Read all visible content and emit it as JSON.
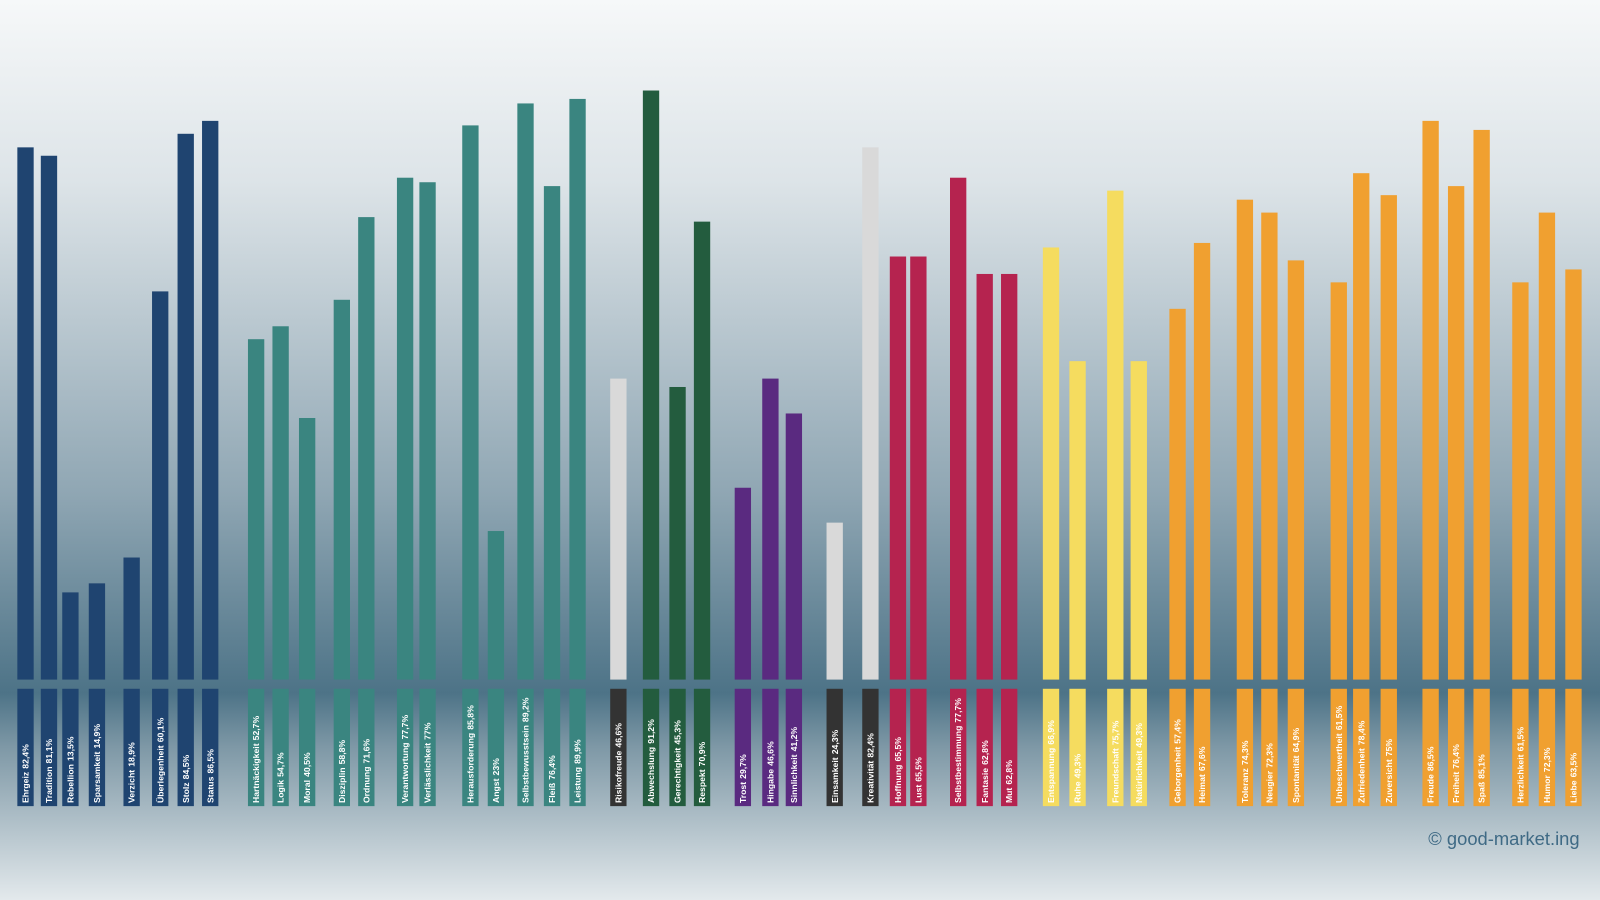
{
  "chart_data": {
    "type": "bar",
    "ylim": [
      0,
      100
    ],
    "footer": "© good-market.ing",
    "categories": [
      "Ehrgeiz",
      "Tradition",
      "Rebellion",
      "Sparsamkeit",
      "Verzicht",
      "Überlegenheit",
      "Stolz",
      "Status",
      "Hartnäckigkeit",
      "Logik",
      "Moral",
      "Disziplin",
      "Ordnung",
      "Verantwortung",
      "Verlässlichkeit",
      "Herausforderung",
      "Angst",
      "Selbstbewusstsein",
      "Fleiß",
      "Leistung",
      "Risikofreude",
      "Abwechslung",
      "Gerechtigkeit",
      "Respekt",
      "Trost",
      "Hingabe",
      "Sinnlichkeit",
      "Einsamkeit",
      "Kreativität",
      "Hoffnung",
      "Lust",
      "Selbstbestimmung",
      "Fantasie",
      "Mut",
      "Entspannung",
      "Ruhe",
      "Freundschaft",
      "Natürlichkeit",
      "Geborgenheit",
      "Heimat",
      "Toleranz",
      "Neugier",
      "Spontanität",
      "Unbeschwertheit",
      "Zufriedenheit",
      "Zuversicht",
      "Freude",
      "Freiheit",
      "Spaß",
      "Herzlichkeit",
      "Humor",
      "Liebe"
    ],
    "values": [
      82.4,
      81.1,
      13.5,
      14.9,
      18.9,
      60.1,
      84.5,
      86.5,
      52.7,
      54.7,
      40.5,
      58.8,
      71.6,
      77.7,
      77,
      85.8,
      23,
      89.2,
      76.4,
      89.9,
      46.6,
      91.2,
      45.3,
      70.9,
      29.7,
      46.6,
      41.2,
      24.3,
      82.4,
      65.5,
      65.5,
      77.7,
      62.8,
      62.8,
      66.9,
      49.3,
      75.7,
      49.3,
      57.4,
      67.6,
      74.3,
      72.3,
      64.9,
      61.5,
      78.4,
      75,
      86.5,
      76.4,
      85.1,
      61.5,
      72.3,
      63.5
    ],
    "value_labels": [
      "82,4%",
      "81,1%",
      "13,5%",
      "14,9%",
      "18,9%",
      "60,1%",
      "84,5%",
      "86,5%",
      "52,7%",
      "54,7%",
      "40,5%",
      "58,8%",
      "71,6%",
      "77,7%",
      "77%",
      "85,8%",
      "23%",
      "89,2%",
      "76,4%",
      "89,9%",
      "46,6%",
      "91,2%",
      "45,3%",
      "70,9%",
      "29,7%",
      "46,6%",
      "41,2%",
      "24,3%",
      "82,4%",
      "65,5%",
      "65,5%",
      "77,7%",
      "62,8%",
      "62,8%",
      "66,9%",
      "49,3%",
      "75,7%",
      "49,3%",
      "57,4%",
      "67,6%",
      "74,3%",
      "72,3%",
      "64,9%",
      "61,5%",
      "78,4%",
      "75%",
      "86,5%",
      "76,4%",
      "85,1%",
      "61,5%",
      "72,3%",
      "63,5%"
    ],
    "colors": [
      "#1f4470",
      "#1f4470",
      "#1f4470",
      "#1f4470",
      "#1f4470",
      "#1f4470",
      "#1f4470",
      "#1f4470",
      "#3a8580",
      "#3a8580",
      "#3a8580",
      "#3a8580",
      "#3a8580",
      "#3a8580",
      "#3a8580",
      "#3a8580",
      "#3a8580",
      "#3a8580",
      "#3a8580",
      "#3a8580",
      "#d9d9d9",
      "#235c3e",
      "#235c3e",
      "#235c3e",
      "#5a2a80",
      "#5a2a80",
      "#5a2a80",
      "#d9d9d9",
      "#d9d9d9",
      "#b5234f",
      "#b5234f",
      "#b5234f",
      "#b5234f",
      "#b5234f",
      "#f5dc5f",
      "#f5dc5f",
      "#f5dc5f",
      "#f5dc5f",
      "#f0a030",
      "#f0a030",
      "#f0a030",
      "#f0a030",
      "#f0a030",
      "#f0a030",
      "#f0a030",
      "#f0a030",
      "#f0a030",
      "#f0a030",
      "#f0a030",
      "#f0a030",
      "#f0a030",
      "#f0a030"
    ]
  }
}
